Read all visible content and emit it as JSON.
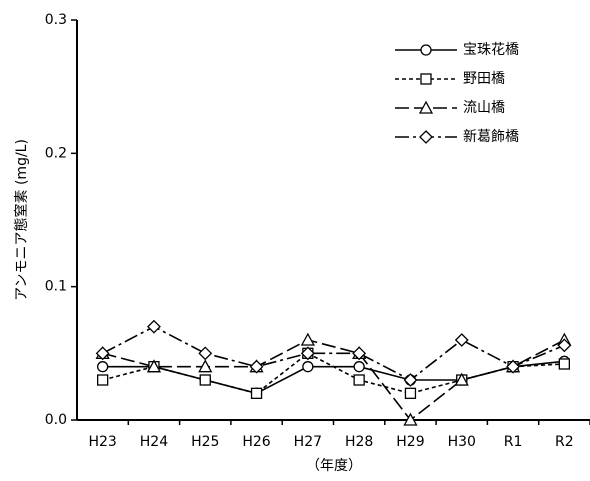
{
  "chart_data": {
    "type": "line",
    "y_label": "アンモニア態窒素 (mg/L)",
    "x_label": "（年度）",
    "categories": [
      "H23",
      "H24",
      "H25",
      "H26",
      "H27",
      "H28",
      "H29",
      "H30",
      "R1",
      "R2"
    ],
    "series": [
      {
        "name": "宝珠花橋",
        "color": "#000000",
        "marker": "circle",
        "dash": "solid",
        "values": [
          0.04,
          0.04,
          0.03,
          0.02,
          0.04,
          0.04,
          0.03,
          0.03,
          0.04,
          0.044
        ]
      },
      {
        "name": "野田橋",
        "color": "#000000",
        "marker": "square",
        "dash": "dashed",
        "values": [
          0.03,
          0.04,
          0.03,
          0.02,
          0.05,
          0.03,
          0.02,
          0.03,
          0.04,
          0.042
        ]
      },
      {
        "name": "流山橋",
        "color": "#000000",
        "marker": "triangle",
        "dash": "longdash",
        "values": [
          0.05,
          0.04,
          0.04,
          0.04,
          0.06,
          0.05,
          0.0,
          0.03,
          0.04,
          0.06
        ]
      },
      {
        "name": "新葛飾橋",
        "color": "#000000",
        "marker": "diamond",
        "dash": "dashdot",
        "values": [
          0.05,
          0.07,
          0.05,
          0.04,
          0.05,
          0.05,
          0.03,
          0.06,
          0.04,
          0.056
        ]
      }
    ],
    "ylim": [
      0,
      0.3
    ],
    "yticks": [
      {
        "value": 0,
        "label": "0.0"
      },
      0.1,
      0.2,
      0.3
    ],
    "grid": false,
    "legend": "upper right"
  }
}
